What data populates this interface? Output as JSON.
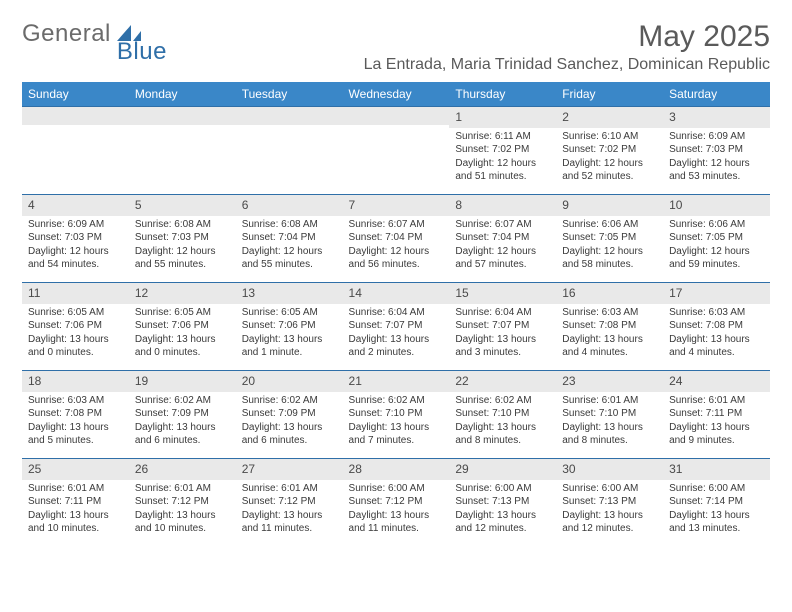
{
  "brand": {
    "part1": "General",
    "part2": "Blue"
  },
  "title": "May 2025",
  "location": "La Entrada, Maria Trinidad Sanchez, Dominican Republic",
  "colors": {
    "header_bg": "#3a87c8",
    "header_text": "#ffffff",
    "daynum_bg": "#e9e9e9",
    "border": "#2f6fa8",
    "body_text": "#3a3a3a",
    "title_text": "#5a5a5a",
    "logo_gray": "#6b6b6b",
    "logo_blue": "#2f6fa8"
  },
  "day_names": [
    "Sunday",
    "Monday",
    "Tuesday",
    "Wednesday",
    "Thursday",
    "Friday",
    "Saturday"
  ],
  "weeks": [
    [
      null,
      null,
      null,
      null,
      {
        "n": "1",
        "sr": "Sunrise: 6:11 AM",
        "ss": "Sunset: 7:02 PM",
        "dl": "Daylight: 12 hours and 51 minutes."
      },
      {
        "n": "2",
        "sr": "Sunrise: 6:10 AM",
        "ss": "Sunset: 7:02 PM",
        "dl": "Daylight: 12 hours and 52 minutes."
      },
      {
        "n": "3",
        "sr": "Sunrise: 6:09 AM",
        "ss": "Sunset: 7:03 PM",
        "dl": "Daylight: 12 hours and 53 minutes."
      }
    ],
    [
      {
        "n": "4",
        "sr": "Sunrise: 6:09 AM",
        "ss": "Sunset: 7:03 PM",
        "dl": "Daylight: 12 hours and 54 minutes."
      },
      {
        "n": "5",
        "sr": "Sunrise: 6:08 AM",
        "ss": "Sunset: 7:03 PM",
        "dl": "Daylight: 12 hours and 55 minutes."
      },
      {
        "n": "6",
        "sr": "Sunrise: 6:08 AM",
        "ss": "Sunset: 7:04 PM",
        "dl": "Daylight: 12 hours and 55 minutes."
      },
      {
        "n": "7",
        "sr": "Sunrise: 6:07 AM",
        "ss": "Sunset: 7:04 PM",
        "dl": "Daylight: 12 hours and 56 minutes."
      },
      {
        "n": "8",
        "sr": "Sunrise: 6:07 AM",
        "ss": "Sunset: 7:04 PM",
        "dl": "Daylight: 12 hours and 57 minutes."
      },
      {
        "n": "9",
        "sr": "Sunrise: 6:06 AM",
        "ss": "Sunset: 7:05 PM",
        "dl": "Daylight: 12 hours and 58 minutes."
      },
      {
        "n": "10",
        "sr": "Sunrise: 6:06 AM",
        "ss": "Sunset: 7:05 PM",
        "dl": "Daylight: 12 hours and 59 minutes."
      }
    ],
    [
      {
        "n": "11",
        "sr": "Sunrise: 6:05 AM",
        "ss": "Sunset: 7:06 PM",
        "dl": "Daylight: 13 hours and 0 minutes."
      },
      {
        "n": "12",
        "sr": "Sunrise: 6:05 AM",
        "ss": "Sunset: 7:06 PM",
        "dl": "Daylight: 13 hours and 0 minutes."
      },
      {
        "n": "13",
        "sr": "Sunrise: 6:05 AM",
        "ss": "Sunset: 7:06 PM",
        "dl": "Daylight: 13 hours and 1 minute."
      },
      {
        "n": "14",
        "sr": "Sunrise: 6:04 AM",
        "ss": "Sunset: 7:07 PM",
        "dl": "Daylight: 13 hours and 2 minutes."
      },
      {
        "n": "15",
        "sr": "Sunrise: 6:04 AM",
        "ss": "Sunset: 7:07 PM",
        "dl": "Daylight: 13 hours and 3 minutes."
      },
      {
        "n": "16",
        "sr": "Sunrise: 6:03 AM",
        "ss": "Sunset: 7:08 PM",
        "dl": "Daylight: 13 hours and 4 minutes."
      },
      {
        "n": "17",
        "sr": "Sunrise: 6:03 AM",
        "ss": "Sunset: 7:08 PM",
        "dl": "Daylight: 13 hours and 4 minutes."
      }
    ],
    [
      {
        "n": "18",
        "sr": "Sunrise: 6:03 AM",
        "ss": "Sunset: 7:08 PM",
        "dl": "Daylight: 13 hours and 5 minutes."
      },
      {
        "n": "19",
        "sr": "Sunrise: 6:02 AM",
        "ss": "Sunset: 7:09 PM",
        "dl": "Daylight: 13 hours and 6 minutes."
      },
      {
        "n": "20",
        "sr": "Sunrise: 6:02 AM",
        "ss": "Sunset: 7:09 PM",
        "dl": "Daylight: 13 hours and 6 minutes."
      },
      {
        "n": "21",
        "sr": "Sunrise: 6:02 AM",
        "ss": "Sunset: 7:10 PM",
        "dl": "Daylight: 13 hours and 7 minutes."
      },
      {
        "n": "22",
        "sr": "Sunrise: 6:02 AM",
        "ss": "Sunset: 7:10 PM",
        "dl": "Daylight: 13 hours and 8 minutes."
      },
      {
        "n": "23",
        "sr": "Sunrise: 6:01 AM",
        "ss": "Sunset: 7:10 PM",
        "dl": "Daylight: 13 hours and 8 minutes."
      },
      {
        "n": "24",
        "sr": "Sunrise: 6:01 AM",
        "ss": "Sunset: 7:11 PM",
        "dl": "Daylight: 13 hours and 9 minutes."
      }
    ],
    [
      {
        "n": "25",
        "sr": "Sunrise: 6:01 AM",
        "ss": "Sunset: 7:11 PM",
        "dl": "Daylight: 13 hours and 10 minutes."
      },
      {
        "n": "26",
        "sr": "Sunrise: 6:01 AM",
        "ss": "Sunset: 7:12 PM",
        "dl": "Daylight: 13 hours and 10 minutes."
      },
      {
        "n": "27",
        "sr": "Sunrise: 6:01 AM",
        "ss": "Sunset: 7:12 PM",
        "dl": "Daylight: 13 hours and 11 minutes."
      },
      {
        "n": "28",
        "sr": "Sunrise: 6:00 AM",
        "ss": "Sunset: 7:12 PM",
        "dl": "Daylight: 13 hours and 11 minutes."
      },
      {
        "n": "29",
        "sr": "Sunrise: 6:00 AM",
        "ss": "Sunset: 7:13 PM",
        "dl": "Daylight: 13 hours and 12 minutes."
      },
      {
        "n": "30",
        "sr": "Sunrise: 6:00 AM",
        "ss": "Sunset: 7:13 PM",
        "dl": "Daylight: 13 hours and 12 minutes."
      },
      {
        "n": "31",
        "sr": "Sunrise: 6:00 AM",
        "ss": "Sunset: 7:14 PM",
        "dl": "Daylight: 13 hours and 13 minutes."
      }
    ]
  ]
}
